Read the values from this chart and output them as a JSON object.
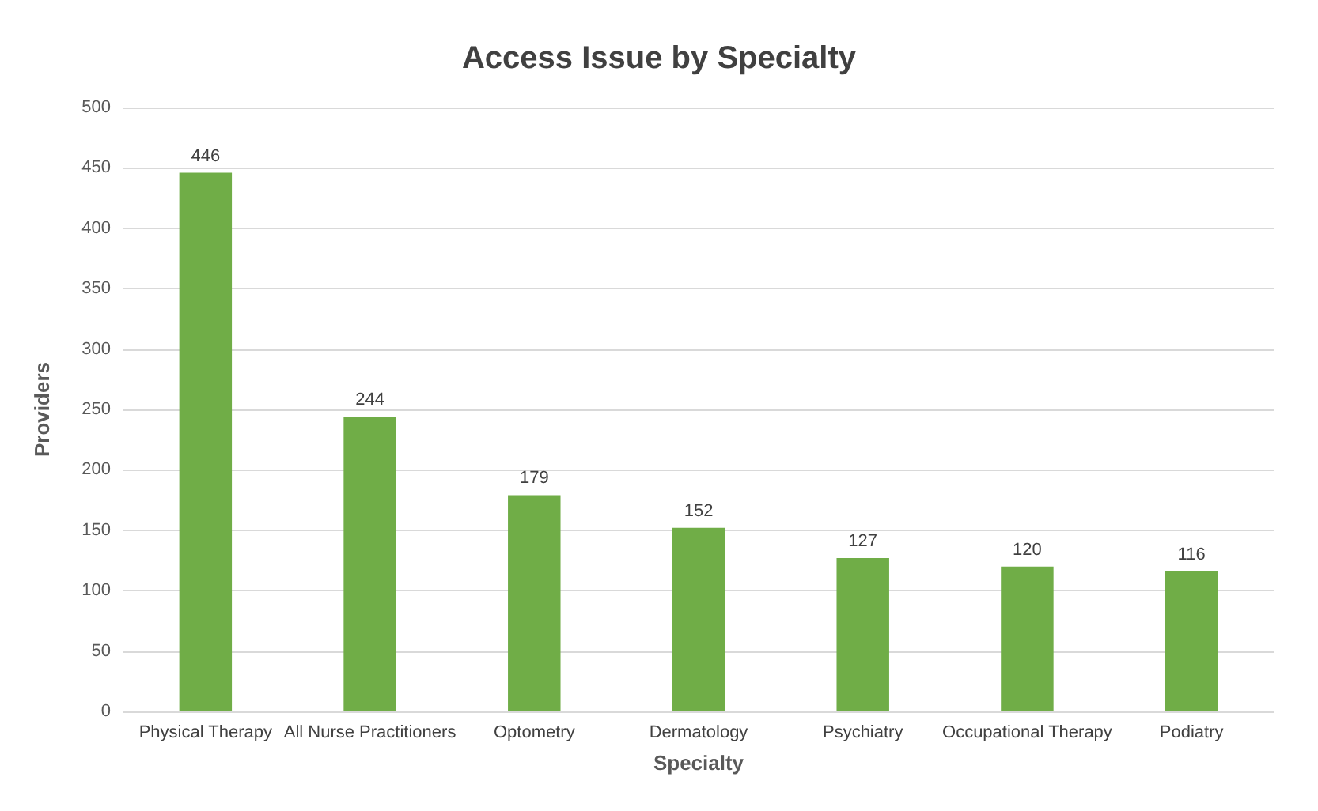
{
  "chart_data": {
    "type": "bar",
    "title": "Access Issue by Specialty",
    "xlabel": "Specialty",
    "ylabel": "Providers",
    "categories": [
      "Physical Therapy",
      "All Nurse Practitioners",
      "Optometry",
      "Dermatology",
      "Psychiatry",
      "Occupational Therapy",
      "Podiatry"
    ],
    "values": [
      446,
      244,
      179,
      152,
      127,
      120,
      116
    ],
    "color": "#70ad47",
    "ylim": [
      0,
      500
    ],
    "yticks": [
      0,
      50,
      100,
      150,
      200,
      250,
      300,
      350,
      400,
      450,
      500
    ],
    "grid": "y",
    "data_labels": true
  }
}
